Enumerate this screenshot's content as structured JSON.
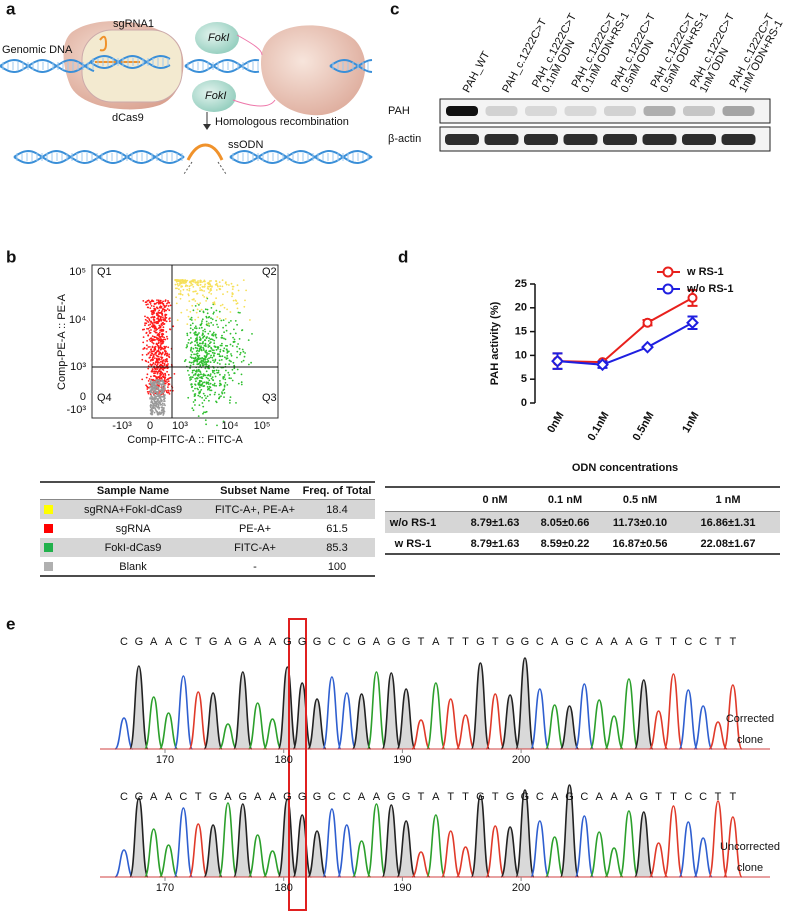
{
  "panel_labels": [
    "a",
    "b",
    "c",
    "d",
    "e"
  ],
  "panel_a": {
    "genomic_dna": "Genomic DNA",
    "sgrna": "sgRNA1",
    "foki_top": "FokI",
    "foki_bottom": "FokI",
    "dcas9": "dCas9",
    "recombination": "Homologous recombination",
    "ssodn": "ssODN"
  },
  "panel_b": {
    "flow": {
      "y_label": "Comp-PE-A :: PE-A",
      "x_label": "Comp-FITC-A :: FITC-A",
      "quadrants": [
        "Q1",
        "Q2",
        "Q3",
        "Q4"
      ],
      "y_ticks": [
        "10⁵",
        "10⁴",
        "10³",
        "0",
        "-10³"
      ],
      "x_ticks": [
        "-10³",
        "0",
        "10³",
        "10⁴",
        "10⁵"
      ]
    },
    "table": {
      "columns": [
        "Sample Name",
        "Subset Name",
        "Freq. of Total"
      ],
      "rows": [
        {
          "color": "#ffff00",
          "cells": [
            "sgRNA+FokI-dCas9",
            "FITC-A+, PE-A+",
            "18.4"
          ]
        },
        {
          "color": "#ff0000",
          "cells": [
            "sgRNA",
            "PE-A+",
            "61.5"
          ]
        },
        {
          "color": "#22b14c",
          "cells": [
            "FokI-dCas9",
            "FITC-A+",
            "85.3"
          ]
        },
        {
          "color": "#b0b0b0",
          "cells": [
            "Blank",
            "-",
            "100"
          ]
        }
      ]
    }
  },
  "panel_c": {
    "lanes": [
      [
        "PAH_WT"
      ],
      [
        "PAH_c.1222C>T"
      ],
      [
        "PAH_c.1222C>T",
        "0.1nM ODN"
      ],
      [
        "PAH_c.1222C>T",
        "0.1nM ODN+RS-1"
      ],
      [
        "PAH_c.1222C>T",
        "0.5nM ODN"
      ],
      [
        "PAH_c.1222C>T",
        "0.5nM ODN+RS-1"
      ],
      [
        "PAH_c.1222C>T",
        "1nM ODN"
      ],
      [
        "PAH_c.1222C>T",
        "1nM ODN+RS-1"
      ]
    ],
    "rows": [
      "PAH",
      "β-actin"
    ]
  },
  "chart_data": {
    "type": "line",
    "y_label": "PAH activity (%)",
    "x_label": "ODN concentrations",
    "categories": [
      "0nM",
      "0.1nM",
      "0.5nM",
      "1nM"
    ],
    "series": [
      {
        "name": "w RS-1",
        "color": "#e8201c",
        "values": [
          8.79,
          8.59,
          16.87,
          22.08
        ],
        "errors": [
          1.63,
          0.22,
          0.56,
          1.67
        ]
      },
      {
        "name": "w/o RS-1",
        "color": "#1f1fe0",
        "values": [
          8.79,
          8.05,
          11.73,
          16.86
        ],
        "errors": [
          1.63,
          0.66,
          0.1,
          1.31
        ]
      }
    ],
    "ylim": [
      0,
      25
    ],
    "yticks": [
      0,
      5,
      10,
      15,
      20,
      25
    ],
    "legend": "top-right"
  },
  "table_d": {
    "columns": [
      "0 nM",
      "0.1 nM",
      "0.5  nM",
      "1 nM"
    ],
    "rows": [
      {
        "label": "w/o RS-1",
        "cells": [
          "8.79±1.63",
          "8.05±0.66",
          "11.73±0.10",
          "16.86±1.31"
        ]
      },
      {
        "label": "w RS-1",
        "cells": [
          "8.79±1.63",
          "8.59±0.22",
          "16.87±0.56",
          "22.08±1.67"
        ]
      }
    ]
  },
  "panel_e": {
    "base_colors": {
      "A": "#2ca02c",
      "C": "#2f5fd0",
      "G": "#222222",
      "T": "#e03a2a"
    },
    "corrected_sequence": [
      "C",
      "G",
      "A",
      "A",
      "C",
      "T",
      "G",
      "A",
      "G",
      "A",
      "A",
      "G",
      "G",
      "G",
      "C",
      "C",
      "G",
      "A",
      "G",
      "G",
      "T",
      "A",
      "T",
      "T",
      "G",
      "T",
      "G",
      "G",
      "C",
      "A",
      "G",
      "C",
      "A",
      "A",
      "A",
      "G",
      "T",
      "T",
      "C",
      "C",
      "T",
      "T"
    ],
    "uncorrected_sequence": [
      "C",
      "G",
      "A",
      "A",
      "C",
      "T",
      "G",
      "A",
      "G",
      "A",
      "A",
      "G",
      "G",
      "G",
      "C",
      "C",
      "A",
      "A",
      "G",
      "G",
      "T",
      "A",
      "T",
      "T",
      "G",
      "T",
      "G",
      "G",
      "C",
      "A",
      "G",
      "C",
      "A",
      "A",
      "A",
      "G",
      "T",
      "T",
      "C",
      "C",
      "T",
      "T"
    ],
    "xticks": [
      170,
      180,
      190,
      200
    ],
    "corrected_label": [
      "Corrected",
      "clone"
    ],
    "uncorrected_label": [
      "Uncorrected",
      "clone"
    ]
  }
}
